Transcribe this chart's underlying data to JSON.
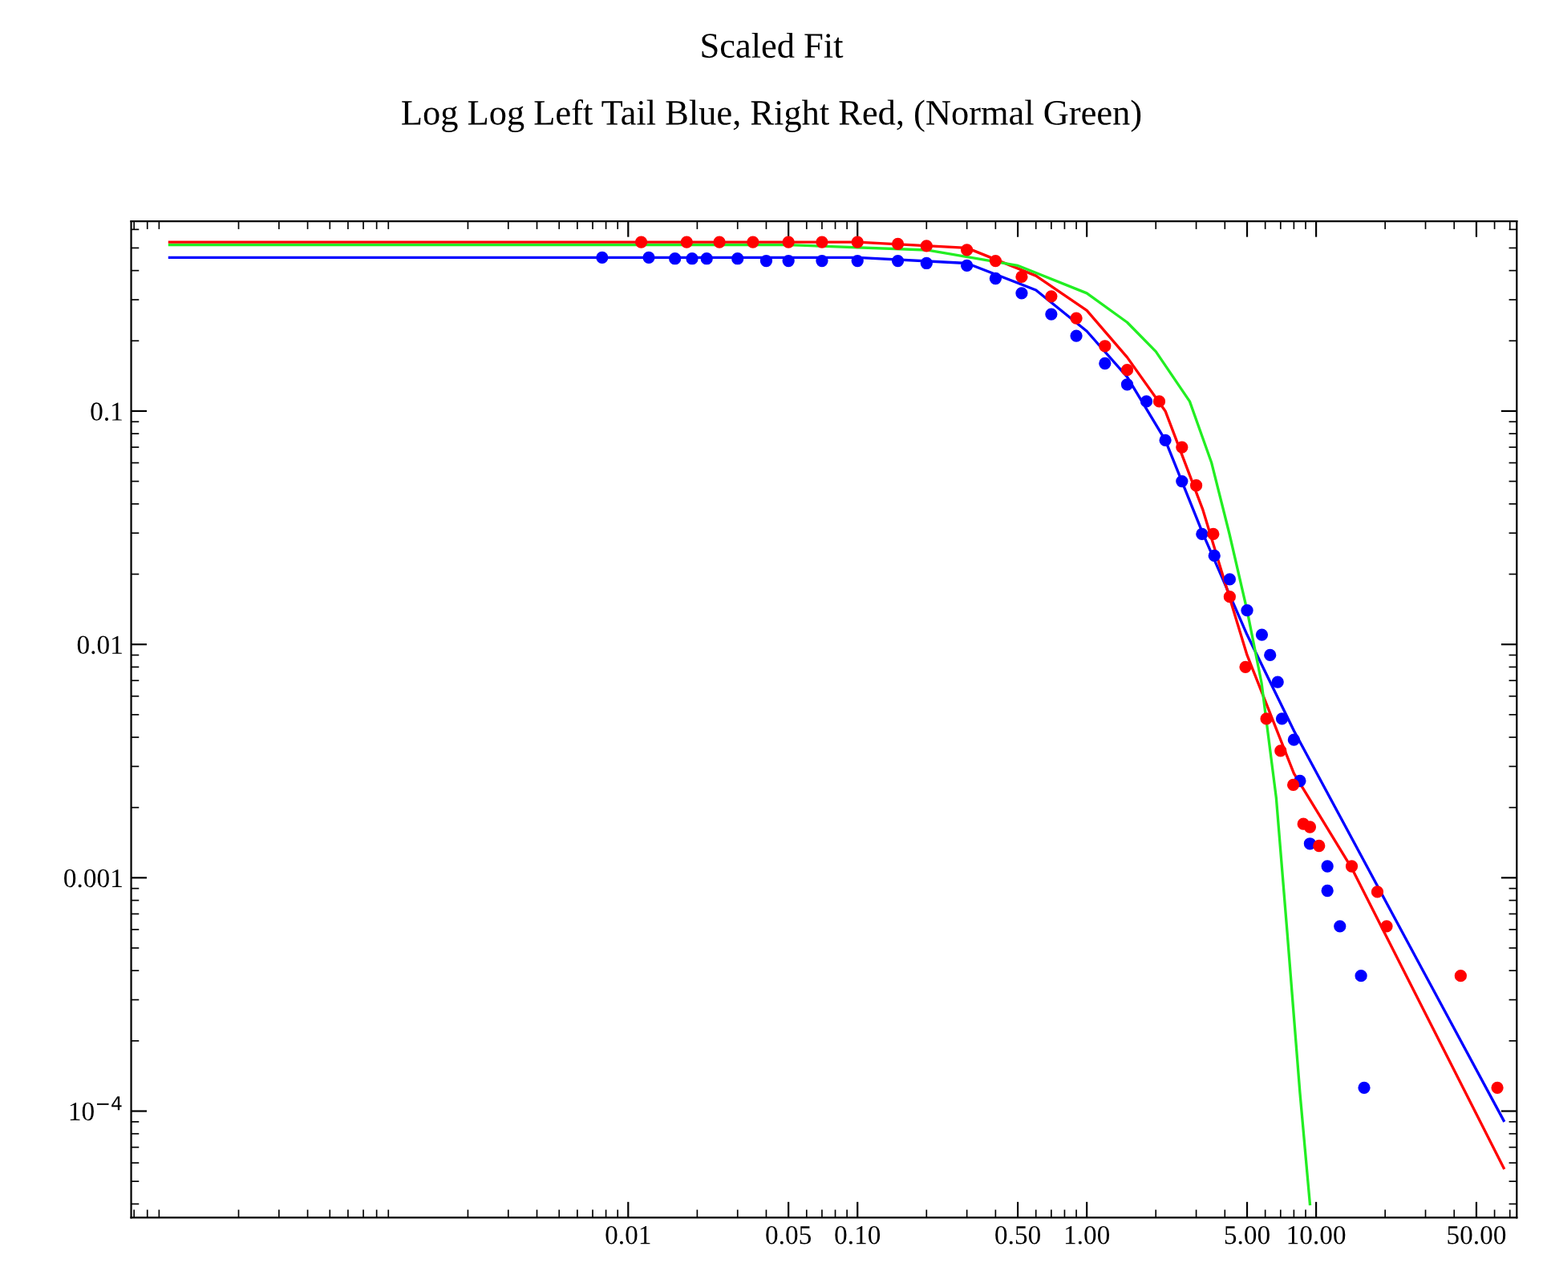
{
  "chart_data": {
    "type": "line",
    "title": "Scaled Fit",
    "subtitle": "Log Log Left Tail Blue, Right Red, (Normal Green)",
    "log": "xy",
    "grid": false,
    "legend": false,
    "xlim": [
      6.8e-05,
      75
    ],
    "ylim": [
      3.5e-05,
      0.65
    ],
    "xticks": [
      {
        "value": 0.01,
        "label": "0.01"
      },
      {
        "value": 0.05,
        "label": "0.05"
      },
      {
        "value": 0.1,
        "label": "0.10"
      },
      {
        "value": 0.5,
        "label": "0.50"
      },
      {
        "value": 1,
        "label": "1.00"
      },
      {
        "value": 5,
        "label": "5.00"
      },
      {
        "value": 10,
        "label": "10.00"
      },
      {
        "value": 50,
        "label": "50.00"
      }
    ],
    "yticks": [
      {
        "value": 0.0001,
        "label": "10$^{−4}$"
      },
      0.001,
      0.01,
      0.1
    ],
    "series": [
      {
        "type": "scatter",
        "marker": "circle",
        "color": "#0000ff",
        "x": [
          0.0077,
          0.0123,
          0.016,
          0.019,
          0.022,
          0.03,
          0.04,
          0.05,
          0.07,
          0.1,
          0.15,
          0.2,
          0.3,
          0.4,
          0.52,
          0.7,
          0.9,
          1.2,
          1.5,
          1.82,
          2.2,
          2.6,
          3.18,
          3.6,
          4.2,
          5,
          5.8,
          6.3,
          6.8,
          7.1,
          8,
          8.5,
          9.4,
          11.2,
          11.2,
          12.7,
          15.7,
          16.2
        ],
        "values": [
          0.455,
          0.455,
          0.45,
          0.45,
          0.45,
          0.45,
          0.44,
          0.44,
          0.44,
          0.44,
          0.44,
          0.43,
          0.42,
          0.37,
          0.32,
          0.26,
          0.21,
          0.16,
          0.13,
          0.11,
          0.075,
          0.05,
          0.0297,
          0.024,
          0.019,
          0.014,
          0.011,
          0.009,
          0.0069,
          0.0048,
          0.0039,
          0.0026,
          0.0014,
          0.00112,
          0.00088,
          0.00062,
          0.00038,
          0.000126
        ]
      },
      {
        "type": "scatter",
        "marker": "circle",
        "color": "#ff0000",
        "x": [
          0.0114,
          0.018,
          0.025,
          0.035,
          0.05,
          0.07,
          0.1,
          0.15,
          0.2,
          0.3,
          0.4,
          0.52,
          0.7,
          0.9,
          1.2,
          1.5,
          2.07,
          2.6,
          3.0,
          3.56,
          4.2,
          4.92,
          6.07,
          7,
          7.95,
          8.8,
          9.4,
          10.3,
          14.3,
          18.5,
          20.3,
          42.7,
          61.7
        ],
        "values": [
          0.53,
          0.53,
          0.53,
          0.53,
          0.53,
          0.53,
          0.53,
          0.52,
          0.51,
          0.49,
          0.44,
          0.376,
          0.31,
          0.25,
          0.19,
          0.15,
          0.11,
          0.07,
          0.048,
          0.0297,
          0.016,
          0.008,
          0.0048,
          0.0035,
          0.0025,
          0.0017,
          0.00165,
          0.00137,
          0.00112,
          0.00087,
          0.00062,
          0.00038,
          0.000126
        ]
      },
      {
        "marker": "none",
        "line_style": "solid",
        "color": "#0000ff",
        "x": [
          0.0001,
          0.1,
          0.3,
          0.6,
          1,
          1.5,
          2.2,
          3.2,
          5,
          8,
          65.8
        ],
        "values": [
          0.455,
          0.455,
          0.43,
          0.33,
          0.22,
          0.14,
          0.075,
          0.03,
          0.011,
          0.00427,
          9.1e-05
        ]
      },
      {
        "marker": "none",
        "line_style": "solid",
        "color": "#ff0000",
        "x": [
          0.0001,
          0.1,
          0.3,
          0.6,
          1,
          1.5,
          2.2,
          3.2,
          5,
          8,
          14.3,
          65.8
        ],
        "values": [
          0.53,
          0.53,
          0.5,
          0.38,
          0.27,
          0.17,
          0.1,
          0.038,
          0.009,
          0.0028,
          0.0011,
          5.7e-05
        ]
      },
      {
        "marker": "none",
        "line_style": "solid",
        "color": "#22ee22",
        "x": [
          0.0001,
          0.05,
          0.2,
          0.5,
          1,
          1.5,
          2,
          2.81,
          3.5,
          4.19,
          5,
          5.78,
          6.7,
          7.48,
          8.5,
          9.4
        ],
        "values": [
          0.515,
          0.515,
          0.49,
          0.42,
          0.32,
          0.24,
          0.18,
          0.11,
          0.06,
          0.0297,
          0.014,
          0.00685,
          0.0022,
          0.000585,
          0.00012,
          4e-05
        ]
      }
    ]
  }
}
